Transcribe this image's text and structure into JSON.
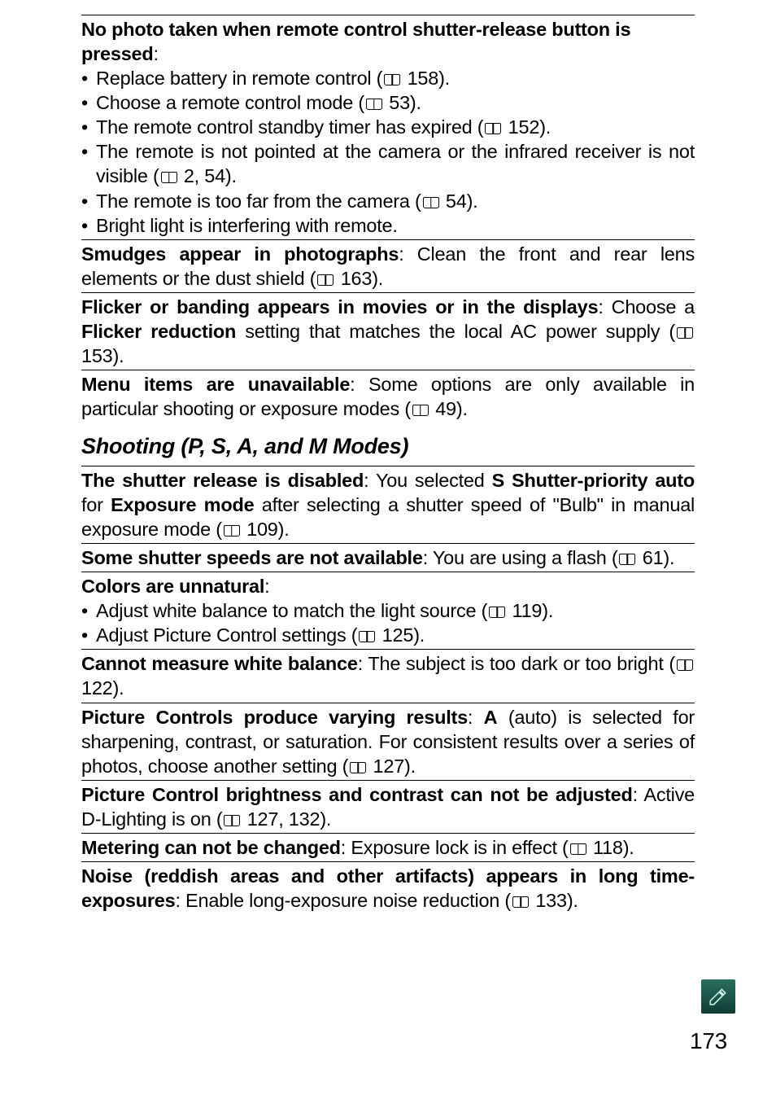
{
  "section1": {
    "items": [
      {
        "label_bold_cond": "No photo taken when remote control shutter-release button is pressed",
        "label_tail": ":",
        "bullets": [
          {
            "pre": "Replace battery in remote control (",
            "page": "158",
            "post": ")."
          },
          {
            "pre": "Choose a remote control mode (",
            "page": "53",
            "post": ")."
          },
          {
            "pre": "The remote control standby timer has expired (",
            "page": "152",
            "post": ")."
          },
          {
            "pre_justify": "The remote is not pointed at the camera or the infrared receiver is not visible (",
            "page": "2, 54",
            "post": ")."
          },
          {
            "pre": "The remote is too far from the camera (",
            "page": "54",
            "post": ")."
          },
          {
            "plain": "Bright light is interfering with remote."
          }
        ]
      },
      {
        "label_bold_cond": "Smudges appear in photographs",
        "label_tail": ": Clean the front and rear lens elements or the dust shield (",
        "page": "163",
        "tail2": ").",
        "justify": true
      },
      {
        "label_bold_cond": "Flicker or banding appears in movies or in the displays",
        "label_tail": ": Choose a ",
        "bold_inline": "Flicker reduc",
        "wrap_bold": "tion",
        "wrap_tail": " setting that matches the local AC power supply (",
        "page": "153",
        "tail2": ").",
        "justify": true
      },
      {
        "label_bold_cond": "Menu items are unavailable",
        "label_tail": ": Some options are only available in particular shooting or exposure modes (",
        "page": "49",
        "tail2": ").",
        "justify": true
      }
    ]
  },
  "heading": "Shooting (P, S, A, and M Modes)",
  "section2": {
    "items": [
      {
        "lines_html": true,
        "label_bold_cond": "The shutter release is disabled",
        "t1": ": You selected ",
        "bold1": "S Shutter-priority auto",
        "t2": " for ",
        "bold2": "Exposure mode",
        "t3": " after selecting a shutter speed of \"Bulb\" in manual exposure mode (",
        "page": "109",
        "t4": ").",
        "justify": true
      },
      {
        "label_bold_cond": "Some shutter speeds are not available",
        "label_tail": ": You are using a flash (",
        "page": "61",
        "tail2": ")."
      },
      {
        "label_bold_cond": "Colors are unnatural",
        "label_tail": ":",
        "bullets": [
          {
            "pre": "Adjust white balance to match the light source (",
            "page": "119",
            "post": ")."
          },
          {
            "pre": "Adjust Picture Control settings (",
            "page": "125",
            "post": ")."
          }
        ]
      },
      {
        "label_bold_cond": "Cannot measure white balance",
        "label_tail": ": The subject is too dark or too bright (",
        "page": "122",
        "tail2": ").",
        "justify": true
      },
      {
        "label_bold_cond": "Picture Controls produce varying results",
        "label_tail": ": ",
        "bold_inline": "A",
        "tail_after_bold": " (auto) is selected for sharpening, contrast, or saturation.  For consistent results over a series of photos, choose another setting (",
        "page": "127",
        "tail2": ").",
        "justify": true
      },
      {
        "label_bold_cond": "Picture Control brightness and contrast can not be adjusted",
        "label_tail": ": Active D-Lighting is on (",
        "page": "127, 132",
        "tail2": ").",
        "justify": true
      },
      {
        "label_bold_cond": "Metering can not be changed",
        "label_tail": ": Exposure lock is in effect (",
        "page": "118",
        "tail2": ")."
      },
      {
        "label_bold_cond": "Noise (reddish areas and other artifacts) appears in long time-exposures",
        "label_tail": ": Enable long-exposure noise reduction (",
        "page": "133",
        "tail2": ").",
        "justify": true
      }
    ]
  },
  "page_number": "173"
}
